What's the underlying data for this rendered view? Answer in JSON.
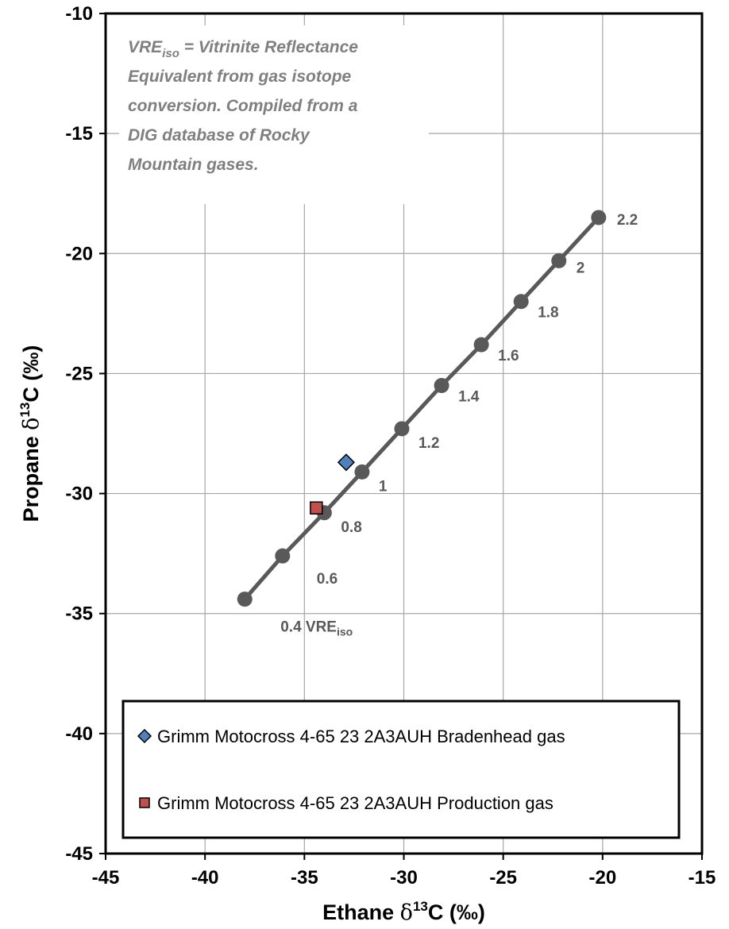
{
  "chart_data": {
    "type": "scatter",
    "xlabel": {
      "prefix": "Ethane ",
      "symbol": "δ",
      "sup": "13",
      "suffix": "C (‰)"
    },
    "ylabel": {
      "prefix": "Propane ",
      "symbol": "δ",
      "sup": "13",
      "suffix": "C (‰)"
    },
    "xlim": [
      -45,
      -15
    ],
    "ylim": [
      -45,
      -10
    ],
    "xticks": [
      "-45",
      "-40",
      "-35",
      "-30",
      "-25",
      "-20",
      "-15"
    ],
    "yticks": [
      "-10",
      "-15",
      "-20",
      "-25",
      "-30",
      "-35",
      "-40",
      "-45"
    ],
    "grid": true,
    "note": {
      "lines": [
        {
          "main": "VRE",
          "sub": "iso",
          "rest": " = Vitrinite Reflectance"
        },
        {
          "main": "Equivalent from gas isotope",
          "sub": "",
          "rest": ""
        },
        {
          "main": "conversion.  Compiled from a",
          "sub": "",
          "rest": ""
        },
        {
          "main": "DIG database of Rocky",
          "sub": "",
          "rest": ""
        },
        {
          "main": "Mountain  gases.",
          "sub": "",
          "rest": ""
        }
      ]
    },
    "vre_line": {
      "color": "#595959",
      "points": [
        {
          "x": -38.0,
          "y": -34.4,
          "label": "0.4 VRE",
          "label_sub": "iso"
        },
        {
          "x": -36.1,
          "y": -32.6,
          "label": "0.6",
          "label_sub": ""
        },
        {
          "x": -34.0,
          "y": -30.8,
          "label": "0.8",
          "label_sub": ""
        },
        {
          "x": -32.1,
          "y": -29.1,
          "label": "1",
          "label_sub": ""
        },
        {
          "x": -30.1,
          "y": -27.3,
          "label": "1.2",
          "label_sub": ""
        },
        {
          "x": -28.1,
          "y": -25.5,
          "label": "1.4",
          "label_sub": ""
        },
        {
          "x": -26.1,
          "y": -23.8,
          "label": "1.6",
          "label_sub": ""
        },
        {
          "x": -24.1,
          "y": -22.0,
          "label": "1.8",
          "label_sub": ""
        },
        {
          "x": -22.2,
          "y": -20.3,
          "label": "2",
          "label_sub": ""
        },
        {
          "x": -20.2,
          "y": -18.5,
          "label": "2.2",
          "label_sub": ""
        }
      ]
    },
    "series": [
      {
        "name": "Grimm Motocross 4-65 23 2A3AUH Bradenhead gas",
        "marker": "diamond",
        "color": "#4f81bd",
        "x": -32.9,
        "y": -28.7
      },
      {
        "name": "Grimm Motocross 4-65 23 2A3AUH Production gas",
        "marker": "square",
        "color": "#c0504d",
        "x": -34.4,
        "y": -30.6
      }
    ],
    "legend_placement": "bottom-inside"
  }
}
